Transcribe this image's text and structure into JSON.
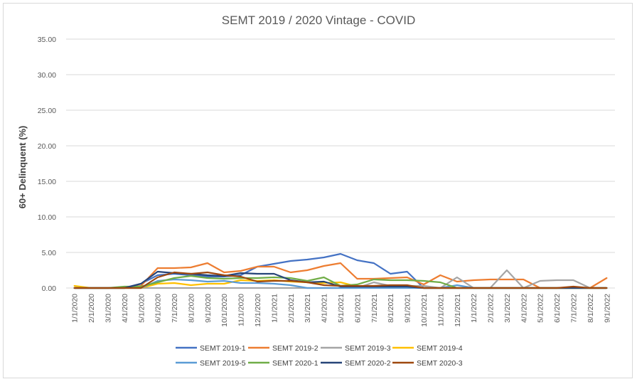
{
  "chart_data": {
    "type": "line",
    "title": "SEMT 2019 / 2020 Vintage - COVID",
    "ylabel": "60+ Delinquent (%)",
    "xlabel": "",
    "ylim": [
      0,
      35
    ],
    "yticks": [
      "0.00",
      "5.00",
      "10.00",
      "15.00",
      "20.00",
      "25.00",
      "30.00",
      "35.00"
    ],
    "grid": true,
    "legend_position": "bottom",
    "categories": [
      "1/1/2020",
      "2/1/2020",
      "3/1/2020",
      "4/1/2020",
      "5/1/2020",
      "6/1/2020",
      "7/1/2020",
      "8/1/2020",
      "9/1/2020",
      "10/1/2020",
      "11/1/2020",
      "12/1/2020",
      "1/1/2021",
      "2/1/2021",
      "3/1/2021",
      "4/1/2021",
      "5/1/2021",
      "6/1/2021",
      "7/1/2021",
      "8/1/2021",
      "9/1/2021",
      "10/1/2021",
      "11/1/2021",
      "12/1/2021",
      "1/1/2022",
      "2/1/2022",
      "3/1/2022",
      "4/1/2022",
      "5/1/2022",
      "6/1/2022",
      "7/1/2022",
      "8/1/2022",
      "9/1/2022"
    ],
    "series": [
      {
        "name": "SEMT 2019-1",
        "color": "#4472c4",
        "values": [
          0,
          0,
          0,
          0,
          0.6,
          1.8,
          2.0,
          1.8,
          1.6,
          1.6,
          1.8,
          3.0,
          3.4,
          3.8,
          4.0,
          4.3,
          4.8,
          3.9,
          3.5,
          2.0,
          2.3,
          0,
          0,
          0,
          0,
          0,
          0,
          0,
          0,
          0,
          0,
          0,
          0
        ]
      },
      {
        "name": "SEMT 2019-2",
        "color": "#ed7d31",
        "values": [
          0,
          0,
          0,
          0,
          0.3,
          2.8,
          2.8,
          2.9,
          3.5,
          2.2,
          2.4,
          3.0,
          3.0,
          2.2,
          2.5,
          3.1,
          3.5,
          1.3,
          1.3,
          1.4,
          1.5,
          0.5,
          1.8,
          0.9,
          1.1,
          1.2,
          1.2,
          1.2,
          0,
          0,
          0,
          0,
          1.4
        ]
      },
      {
        "name": "SEMT 2019-3",
        "color": "#a5a5a5",
        "values": [
          0,
          0,
          0,
          0,
          0,
          0,
          0,
          0,
          0,
          0,
          0,
          0,
          0,
          0,
          0,
          0,
          0,
          0,
          0.8,
          0.3,
          0.3,
          0.3,
          0,
          1.5,
          0,
          0,
          2.5,
          0,
          1.0,
          1.1,
          1.1,
          0,
          0
        ]
      },
      {
        "name": "SEMT 2019-4",
        "color": "#ffc000",
        "values": [
          0.3,
          0,
          0,
          0,
          0,
          0.6,
          0.7,
          0.4,
          0.6,
          0.6,
          1.1,
          1.0,
          1.1,
          0.9,
          0.8,
          0.7,
          0.8,
          0.2,
          0.2,
          0.2,
          0.1,
          0,
          0,
          0,
          0,
          0,
          0,
          0,
          0,
          0,
          0,
          0,
          0
        ]
      },
      {
        "name": "SEMT 2019-5",
        "color": "#5b9bd5",
        "values": [
          0,
          0,
          0,
          0,
          0,
          1.0,
          1.2,
          1.1,
          0.9,
          1.0,
          0.7,
          0.7,
          0.6,
          0.4,
          0,
          0,
          0,
          0,
          0,
          0,
          0,
          0,
          0,
          0.4,
          0,
          0,
          0,
          0,
          0,
          0,
          0,
          0,
          0
        ]
      },
      {
        "name": "SEMT 2020-1",
        "color": "#70ad47",
        "values": [
          0,
          0,
          0,
          0.2,
          0.2,
          0.8,
          1.4,
          1.7,
          1.4,
          1.3,
          1.4,
          1.4,
          1.5,
          1.4,
          1.0,
          1.5,
          0.3,
          0.5,
          1.2,
          1.1,
          1.1,
          1.0,
          0.8,
          0,
          0,
          0,
          0,
          0,
          0,
          0,
          0,
          0,
          0
        ]
      },
      {
        "name": "SEMT 2020-2",
        "color": "#264478",
        "values": [
          0,
          0,
          0,
          0,
          0.6,
          2.3,
          2.1,
          2.0,
          1.8,
          1.7,
          2.1,
          2.0,
          2.0,
          1.1,
          0.8,
          0.9,
          0.2,
          0.2,
          0.2,
          0.2,
          0.2,
          0,
          0,
          0,
          0,
          0,
          0,
          0,
          0,
          0,
          0,
          0,
          0
        ]
      },
      {
        "name": "SEMT 2020-3",
        "color": "#9e480e",
        "values": [
          0,
          0,
          0,
          0,
          0,
          1.5,
          2.2,
          2.0,
          2.2,
          1.8,
          1.6,
          0.9,
          1.0,
          1.0,
          0.8,
          0.4,
          0.3,
          0.3,
          0.3,
          0.4,
          0.4,
          0,
          0,
          0,
          0,
          0,
          0,
          0,
          0,
          0,
          0.2,
          0,
          0
        ]
      }
    ]
  }
}
